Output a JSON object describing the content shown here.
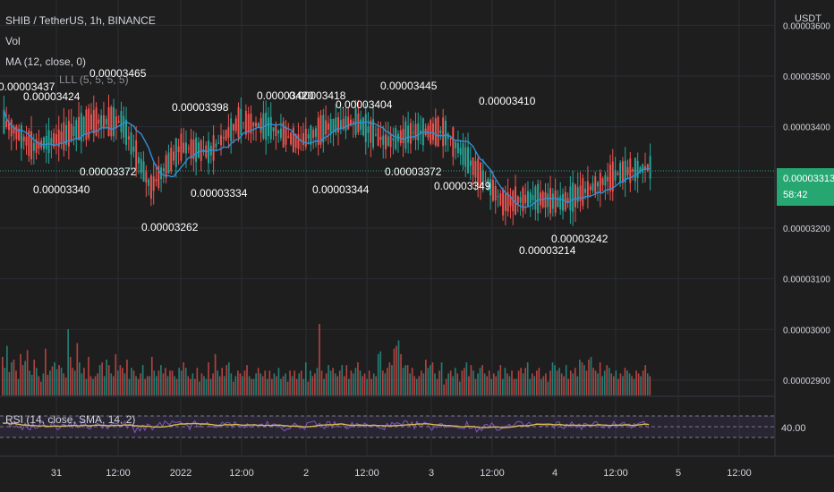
{
  "header": {
    "symbol_line": "SHIB / TetherUS, 1h, BINANCE",
    "vol_label": "Vol",
    "ma_label": "MA (12, close, 0)",
    "overlap_label": "LLL (5, 5, 5, 5)",
    "quote_currency": "USDT"
  },
  "price_badge": {
    "price": "0.00003313",
    "countdown": "58:42"
  },
  "rsi": {
    "label": "RSI (14, close, SMA, 14, 2)",
    "value_label": "40.00"
  },
  "colors": {
    "background": "#1e1e1e",
    "up": "#26a69a",
    "down": "#ef5350",
    "ma": "#2f8fd6",
    "rsi": "#7e57c2",
    "rsi_sma": "#d4b84a",
    "price_badge": "#26a772"
  },
  "chart_data": {
    "type": "candlestick",
    "y_ticks": [
      "0.00003600",
      "0.00003500",
      "0.00003400",
      "0.00003300",
      "0.00003200",
      "0.00003100",
      "0.00003000",
      "0.00002900"
    ],
    "y_ticks_values": [
      3.6e-05,
      3.5e-05,
      3.4e-05,
      3.3e-05,
      3.2e-05,
      3.1e-05,
      3e-05,
      2.9e-05
    ],
    "x_ticks": [
      "31",
      "12:00",
      "2022",
      "12:00",
      "2",
      "12:00",
      "3",
      "12:00",
      "4",
      "12:00",
      "5",
      "12:00"
    ],
    "ohlc_anchors": [
      [
        3.4e-05,
        3.43e-05,
        3.38e-05,
        3.41e-05
      ],
      [
        3.4e-05,
        3.41e-05,
        3.34e-05,
        3.36e-05
      ],
      [
        3.38e-05,
        3.39e-05,
        3.37e-05,
        3.38e-05
      ],
      [
        3.4e-05,
        3.42e-05,
        3.39e-05,
        3.41e-05
      ],
      [
        3.41e-05,
        3.42e-05,
        3.4e-05,
        3.41e-05
      ],
      [
        3.41e-05,
        3.41e-05,
        3.26e-05,
        3.28e-05
      ],
      [
        3.35e-05,
        3.37e-05,
        3.33e-05,
        3.36e-05
      ],
      [
        3.36e-05,
        3.37e-05,
        3.34e-05,
        3.35e-05
      ],
      [
        3.4e-05,
        3.41e-05,
        3.37e-05,
        3.41e-05
      ],
      [
        3.41e-05,
        3.42e-05,
        3.39e-05,
        3.4e-05
      ],
      [
        3.39e-05,
        3.4e-05,
        3.36e-05,
        3.37e-05
      ],
      [
        3.4e-05,
        3.41e-05,
        3.38e-05,
        3.4e-05
      ],
      [
        3.42e-05,
        3.44e-05,
        3.4e-05,
        3.41e-05
      ],
      [
        3.39e-05,
        3.4e-05,
        3.36e-05,
        3.37e-05
      ],
      [
        3.4e-05,
        3.4e-05,
        3.37e-05,
        3.39e-05
      ],
      [
        3.39e-05,
        3.4e-05,
        3.38e-05,
        3.39e-05
      ],
      [
        3.35e-05,
        3.36e-05,
        3.3e-05,
        3.32e-05
      ],
      [
        3.29e-05,
        3.3e-05,
        3.21e-05,
        3.25e-05
      ],
      [
        3.28e-05,
        3.3e-05,
        3.25e-05,
        3.26e-05
      ],
      [
        3.26e-05,
        3.27e-05,
        3.24e-05,
        3.25e-05
      ],
      [
        3.27e-05,
        3.3e-05,
        3.26e-05,
        3.28e-05
      ],
      [
        3.29e-05,
        3.32e-05,
        3.28e-05,
        3.31e-05
      ],
      [
        3.31e-05,
        3.34e-05,
        3.3e-05,
        3.32e-05
      ]
    ],
    "label_annotations": [
      "0.00003437",
      "0.00003424",
      "0.00003465",
      "0.00003398",
      "0.00003420",
      "0.00003418",
      "0.00003404",
      "0.00003445",
      "0.00003410",
      "0.00003372",
      "0.00003340",
      "0.00003334",
      "0.00003262",
      "0.00003344",
      "0.00003372",
      "0.00003349",
      "0.00003242",
      "0.00003214"
    ],
    "volume_bars": [
      28,
      20,
      36,
      17,
      24,
      26,
      18,
      12,
      30,
      22,
      25,
      33,
      18,
      15,
      26,
      20,
      14,
      10,
      16,
      34,
      15,
      18,
      21,
      24,
      19,
      22,
      20,
      16,
      13,
      48,
      28,
      20,
      18,
      38,
      24,
      16,
      20,
      12,
      28,
      14,
      12,
      14,
      16,
      22,
      24,
      14,
      26,
      22,
      16,
      14,
      30,
      18,
      22,
      20,
      16,
      26,
      12,
      20,
      18,
      14,
      12,
      16,
      22,
      12,
      14,
      14,
      28,
      18,
      14,
      18,
      22,
      16,
      20,
      14,
      18,
      18,
      14,
      12,
      20,
      18,
      24,
      20,
      14,
      12,
      16,
      12,
      20,
      10,
      16,
      14,
      12,
      24,
      12,
      16,
      30,
      18,
      14,
      20,
      14,
      22,
      24,
      16,
      10,
      14,
      18,
      16,
      14,
      18,
      22,
      14,
      12,
      12,
      16,
      20,
      16,
      14,
      18,
      12,
      18,
      12,
      16,
      14,
      20,
      12,
      14,
      16,
      10,
      18,
      14,
      18,
      12,
      16,
      18,
      12,
      24,
      10,
      18,
      14,
      16,
      20,
      52,
      18,
      12,
      16,
      22,
      18,
      20,
      16,
      14,
      18,
      22,
      14,
      22,
      12,
      18,
      16,
      20,
      24,
      18,
      14,
      16,
      12,
      18,
      12,
      16,
      14,
      30,
      32,
      18,
      16,
      20,
      24,
      22,
      34,
      36,
      40,
      30,
      20,
      22,
      22,
      16,
      20,
      14,
      12,
      14,
      18,
      16,
      26,
      20,
      22,
      24,
      16,
      12,
      18,
      24,
      8,
      12,
      16,
      18,
      14,
      20,
      16,
      10,
      18,
      20,
      24,
      14,
      22,
      18,
      12,
      16,
      20,
      22,
      16,
      14,
      18,
      12,
      16,
      14,
      18,
      22,
      12,
      20,
      16,
      14,
      18,
      12,
      12,
      18,
      20,
      16,
      20,
      24,
      12,
      16,
      14,
      18,
      20,
      12,
      14,
      16,
      10,
      18,
      24,
      22,
      18,
      20,
      16,
      14,
      22,
      12,
      18,
      16,
      20,
      14,
      26,
      24,
      22,
      18,
      26,
      28,
      20,
      18,
      16,
      24,
      14,
      18,
      22,
      20,
      16,
      14,
      18,
      12,
      16,
      14,
      20,
      18,
      16,
      14,
      12,
      18,
      16,
      14,
      18,
      22,
      16,
      14
    ],
    "rsi_levels": {
      "upper": 70,
      "middle": 50,
      "lower": 30
    }
  }
}
